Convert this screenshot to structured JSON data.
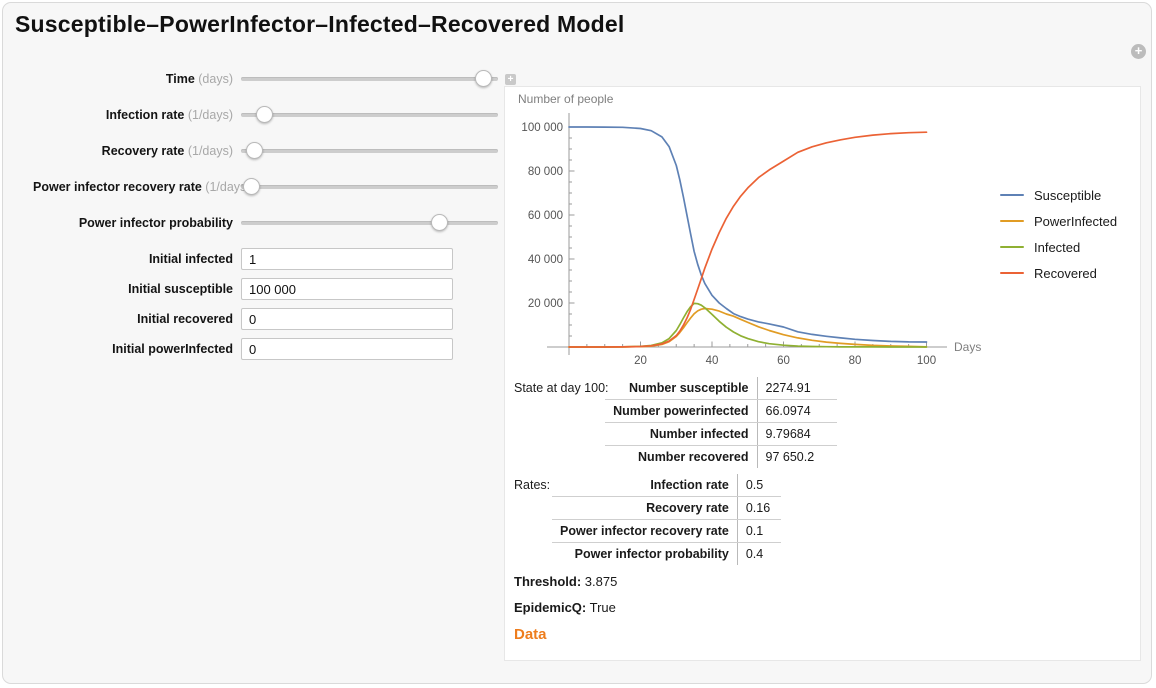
{
  "title": "Susceptible–PowerInfector–Infected–Recovered Model",
  "menu_button": {
    "glyph": "+"
  },
  "controls": {
    "sliders": [
      {
        "label": "Time",
        "unit": "(days)",
        "pct": 94
      },
      {
        "label": "Infection rate",
        "unit": "(1/days)",
        "pct": 9
      },
      {
        "label": "Recovery rate",
        "unit": "(1/days)",
        "pct": 5
      },
      {
        "label": "Power infector recovery rate",
        "unit": "(1/days)",
        "pct": 4
      },
      {
        "label": "Power infector probability",
        "unit": "",
        "pct": 77
      }
    ],
    "fields": [
      {
        "label": "Initial infected",
        "value": "1"
      },
      {
        "label": "Initial susceptible",
        "value": "100 000"
      },
      {
        "label": "Initial recovered",
        "value": "0"
      },
      {
        "label": "Initial powerInfected",
        "value": "0"
      }
    ]
  },
  "chart_data": {
    "type": "line",
    "title": "Number of people",
    "xlabel": "Days",
    "ylabel": "Number of people",
    "xlim": [
      0,
      100
    ],
    "ylim": [
      0,
      100000
    ],
    "xticks": [
      20,
      40,
      60,
      80,
      100
    ],
    "yticks": [
      20000,
      40000,
      60000,
      80000,
      100000
    ],
    "ytick_labels": [
      "20 000",
      "40 000",
      "60 000",
      "80 000",
      "100 000"
    ],
    "grid": false,
    "legend_position": "right",
    "x": [
      0,
      5,
      10,
      15,
      20,
      23,
      26,
      28,
      30,
      31,
      32,
      33,
      34,
      35,
      36,
      37,
      38,
      40,
      42,
      44,
      46,
      48,
      50,
      53,
      56,
      60,
      64,
      68,
      72,
      76,
      80,
      85,
      90,
      95,
      100
    ],
    "series": [
      {
        "name": "Susceptible",
        "color": "#5e81b5",
        "values": [
          99999,
          99993,
          99970,
          99850,
          99340,
          98310,
          95500,
          91100,
          82500,
          76000,
          68200,
          59800,
          51400,
          43500,
          37600,
          32700,
          28900,
          23500,
          20000,
          17500,
          15200,
          13800,
          12700,
          11400,
          10500,
          9100,
          6930,
          5730,
          4855,
          4120,
          3498,
          2947,
          2534,
          2317,
          2275
        ]
      },
      {
        "name": "PowerInfected",
        "color": "#e19c24",
        "values": [
          0,
          2,
          10,
          40,
          160,
          430,
          1200,
          2400,
          4800,
          6600,
          8700,
          11000,
          13200,
          15100,
          16400,
          17200,
          17500,
          17200,
          16300,
          15000,
          14000,
          12600,
          11200,
          9200,
          7500,
          5600,
          4150,
          3050,
          2230,
          1620,
          1170,
          740,
          460,
          280,
          66
        ]
      },
      {
        "name": "Infected",
        "color": "#8fb032",
        "values": [
          1,
          4,
          16,
          65,
          260,
          700,
          1900,
          3800,
          7500,
          10200,
          13200,
          16000,
          18300,
          19800,
          19700,
          19000,
          17800,
          14800,
          11700,
          9000,
          6800,
          5100,
          3800,
          2400,
          1500,
          800,
          420,
          220,
          115,
          60,
          50,
          30,
          18,
          13,
          10
        ]
      },
      {
        "name": "Recovered",
        "color": "#eb6235",
        "values": [
          0,
          1,
          4,
          45,
          240,
          560,
          1400,
          2700,
          5200,
          7200,
          9900,
          13200,
          17100,
          21600,
          26300,
          31100,
          35800,
          44500,
          52000,
          58500,
          64000,
          68500,
          72300,
          77000,
          80500,
          84500,
          88500,
          91000,
          92800,
          94200,
          95300,
          96300,
          97000,
          97400,
          97650
        ]
      }
    ]
  },
  "state_table": {
    "caption": "State at day 100:",
    "rows": [
      {
        "label": "Number susceptible",
        "value": "2274.91"
      },
      {
        "label": "Number powerinfected",
        "value": "66.0974"
      },
      {
        "label": "Number infected",
        "value": "9.79684"
      },
      {
        "label": "Number recovered",
        "value": "97 650.2"
      }
    ]
  },
  "rates_table": {
    "caption": "Rates:",
    "rows": [
      {
        "label": "Infection rate",
        "value": "0.5"
      },
      {
        "label": "Recovery rate",
        "value": "0.16"
      },
      {
        "label": "Power infector recovery rate",
        "value": "0.1"
      },
      {
        "label": "Power infector probability",
        "value": "0.4"
      }
    ]
  },
  "threshold": {
    "label": "Threshold:",
    "value": " 3.875"
  },
  "epidemicq": {
    "label": "EpidemicQ:",
    "value": " True"
  },
  "data_link": "Data",
  "colors": {
    "axis": "#9b9b9b",
    "tick_text": "#555555",
    "muted_text": "#7f7f7f",
    "link_orange": "#ee7d1d"
  }
}
